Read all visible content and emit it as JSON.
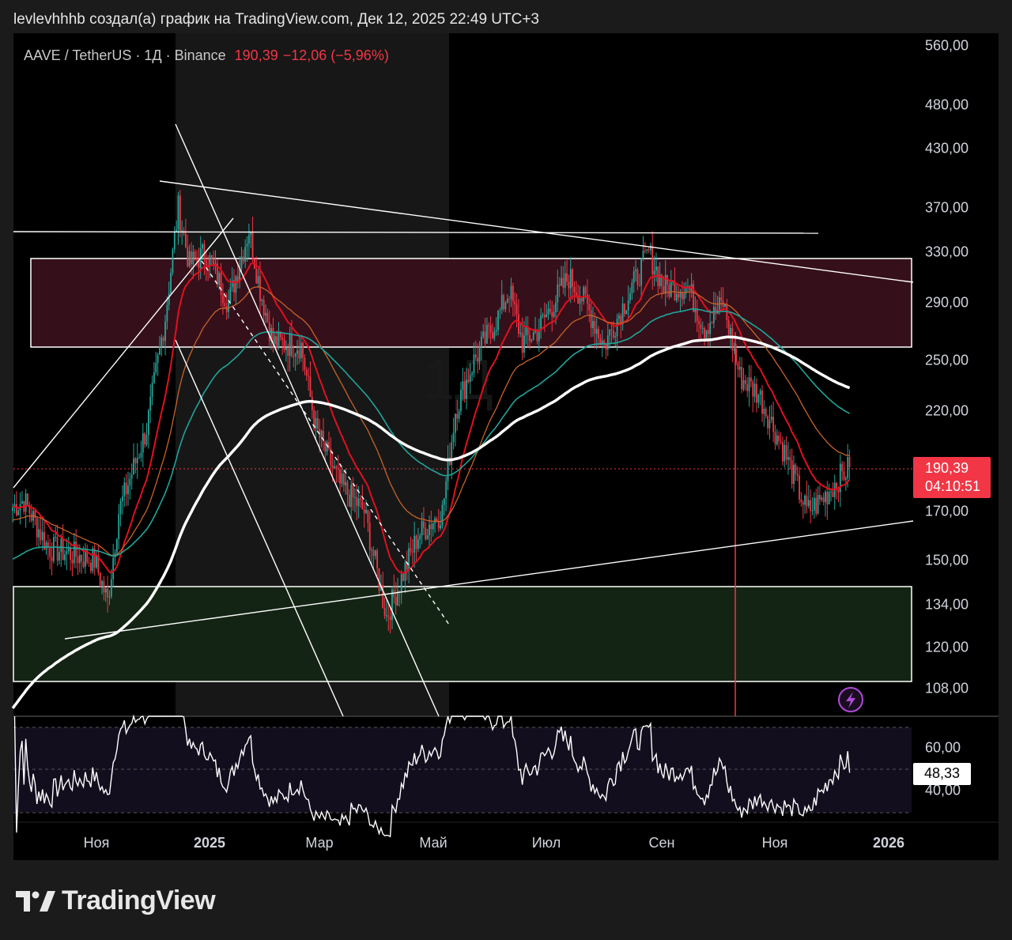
{
  "caption": "levlevhhhb создал(а) график на TradingView.com, Дек 12, 2025 22:49 UTC+3",
  "symbol": {
    "name": "AAVE / TetherUS · 1Д · Binance",
    "price": "190,39",
    "change": "−12,06 (−5,96%)"
  },
  "watermark": "1Д",
  "price_axis": [
    "560,00",
    "480,00",
    "430,00",
    "370,00",
    "330,00",
    "290,00",
    "250,00",
    "220,00",
    "170,00",
    "150,00",
    "134,00",
    "120,00",
    "108,00"
  ],
  "price_label": {
    "price": "190,39",
    "countdown": "04:10:51"
  },
  "rsi_axis": [
    "60,00",
    "40,00"
  ],
  "rsi_value": "48,33",
  "time_axis": [
    {
      "label": "Ноя",
      "bold": false
    },
    {
      "label": "2025",
      "bold": true
    },
    {
      "label": "Мар",
      "bold": false
    },
    {
      "label": "Май",
      "bold": false
    },
    {
      "label": "Июл",
      "bold": false
    },
    {
      "label": "Сен",
      "bold": false
    },
    {
      "label": "Ноя",
      "bold": false
    },
    {
      "label": "2026",
      "bold": true
    }
  ],
  "logo": "TradingView",
  "colors": {
    "up": "#26a69a",
    "down": "#f23645",
    "ema20": "#e0101e",
    "ema50": "#c8622a",
    "ema100": "#1fa59a",
    "ema200": "#ffffff",
    "red_zone": "#3a0d14",
    "green_zone": "#142414"
  },
  "chart_data": {
    "type": "candlestick",
    "x_unit": "days since 2024-11-01",
    "y_scale": "log",
    "ylim": [
      100,
      560
    ],
    "price_path": [
      [
        -45,
        172
      ],
      [
        -39,
        175
      ],
      [
        -26,
        155
      ],
      [
        -1,
        150
      ],
      [
        6,
        135
      ],
      [
        12,
        170
      ],
      [
        27,
        210
      ],
      [
        37,
        280
      ],
      [
        44,
        370
      ],
      [
        50,
        320
      ],
      [
        59,
        330
      ],
      [
        71,
        290
      ],
      [
        82,
        350
      ],
      [
        88,
        300
      ],
      [
        95,
        262
      ],
      [
        110,
        260
      ],
      [
        118,
        210
      ],
      [
        131,
        182
      ],
      [
        144,
        170
      ],
      [
        156,
        130
      ],
      [
        165,
        145
      ],
      [
        173,
        160
      ],
      [
        186,
        170
      ],
      [
        193,
        220
      ],
      [
        203,
        250
      ],
      [
        216,
        280
      ],
      [
        222,
        300
      ],
      [
        229,
        262
      ],
      [
        237,
        270
      ],
      [
        254,
        310
      ],
      [
        263,
        290
      ],
      [
        273,
        260
      ],
      [
        284,
        290
      ],
      [
        297,
        330
      ],
      [
        305,
        302
      ],
      [
        318,
        302
      ],
      [
        327,
        272
      ],
      [
        337,
        290
      ],
      [
        346,
        240
      ],
      [
        356,
        230
      ],
      [
        369,
        200
      ],
      [
        382,
        170
      ],
      [
        390,
        175
      ],
      [
        399,
        185
      ],
      [
        405,
        190.39
      ]
    ],
    "last_close": 190.39,
    "indicators": [
      "EMA20",
      "EMA50",
      "EMA100",
      "EMA200",
      "RSI14"
    ],
    "rsi_levels": [
      70,
      60,
      40,
      30
    ],
    "rsi_last": 48.33
  }
}
